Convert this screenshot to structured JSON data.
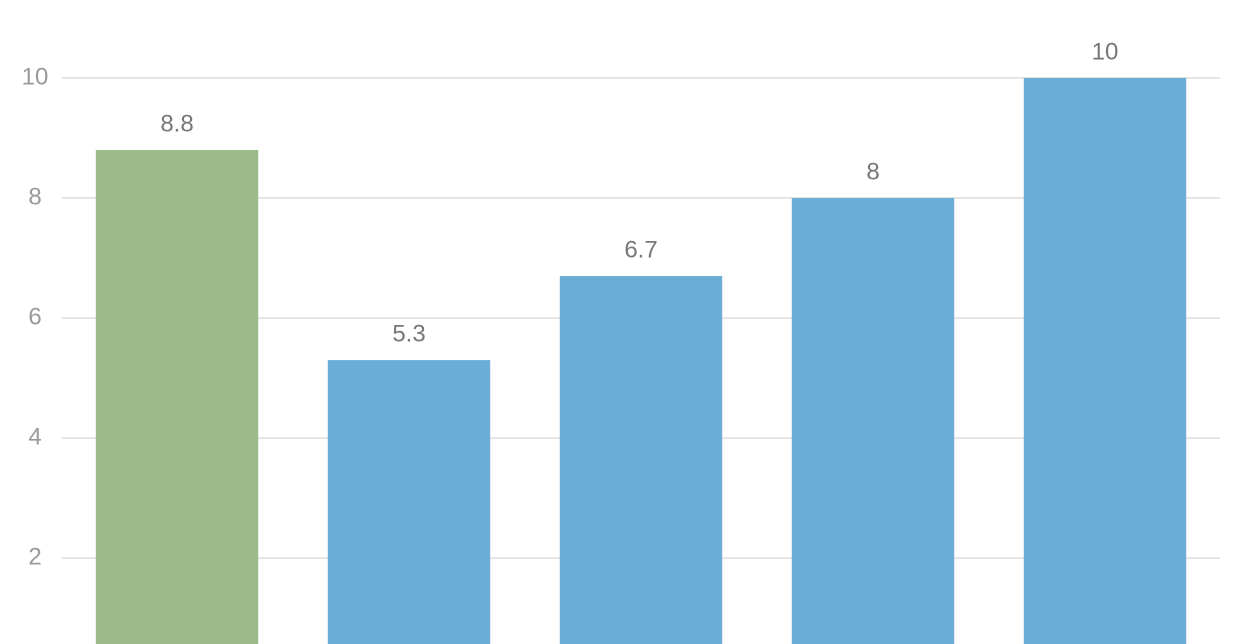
{
  "chart_data": {
    "type": "bar",
    "categories": [
      null,
      null,
      null,
      null,
      null
    ],
    "values": [
      8.8,
      5.3,
      6.7,
      8,
      10
    ],
    "colors": [
      "#9bba8a",
      "#6aadd6",
      "#6aadd6",
      "#6aadd6",
      "#6aadd6"
    ],
    "ylim": [
      0.57,
      10
    ],
    "yticks": [
      2,
      4,
      6,
      8,
      10
    ],
    "grid": true
  }
}
